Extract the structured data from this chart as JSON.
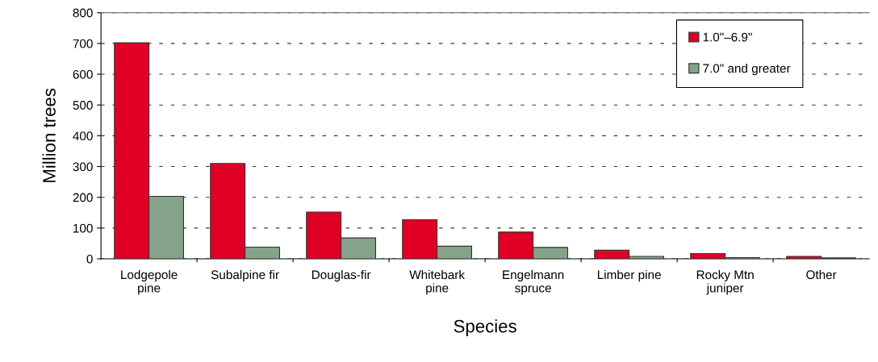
{
  "chart_data": {
    "type": "bar",
    "xlabel": "Species",
    "ylabel": "Million trees",
    "categories": [
      "Lodgepole\npine",
      "Subalpine fir",
      "Douglas-fir",
      "Whitebark\npine",
      "Engelmann\nspruce",
      "Limber pine",
      "Rocky Mtn\njuniper",
      "Other"
    ],
    "series": [
      {
        "name": "1.0\"–6.9\"",
        "color": "#e00025",
        "values": [
          702,
          310,
          152,
          127,
          87,
          28,
          17,
          8
        ]
      },
      {
        "name": "7.0\" and greater",
        "color": "#84a38a",
        "values": [
          203,
          38,
          68,
          41,
          37,
          8,
          4,
          3
        ]
      }
    ],
    "ylim": [
      0,
      800
    ],
    "yticks": [
      0,
      100,
      200,
      300,
      400,
      500,
      600,
      700,
      800
    ],
    "grid": "y",
    "legend": "top right"
  }
}
